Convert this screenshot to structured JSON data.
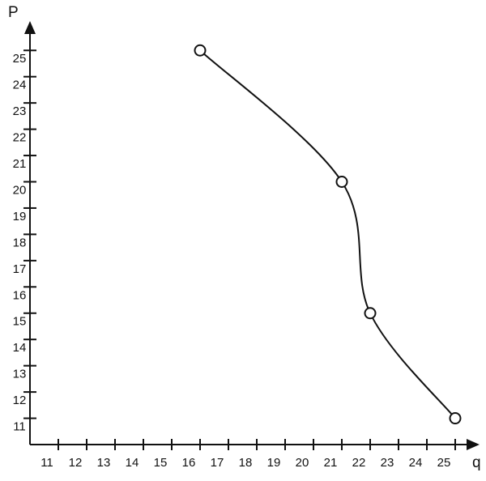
{
  "chart_data": {
    "type": "line",
    "x_label": "q",
    "y_label": "P",
    "x": [
      16,
      21,
      22,
      25
    ],
    "series": [
      {
        "values": [
          25,
          20,
          15,
          11
        ],
        "color": "#111111"
      }
    ],
    "xlim": [
      10,
      26.5
    ],
    "ylim": [
      10,
      26.5
    ],
    "xticks": [
      11,
      12,
      13,
      14,
      15,
      16,
      17,
      18,
      19,
      20,
      21,
      22,
      23,
      24,
      25
    ],
    "yticks": [
      11,
      12,
      13,
      14,
      15,
      16,
      17,
      18,
      19,
      20,
      21,
      22,
      23,
      24,
      25
    ],
    "smooth": true,
    "markers": "open-circle"
  }
}
